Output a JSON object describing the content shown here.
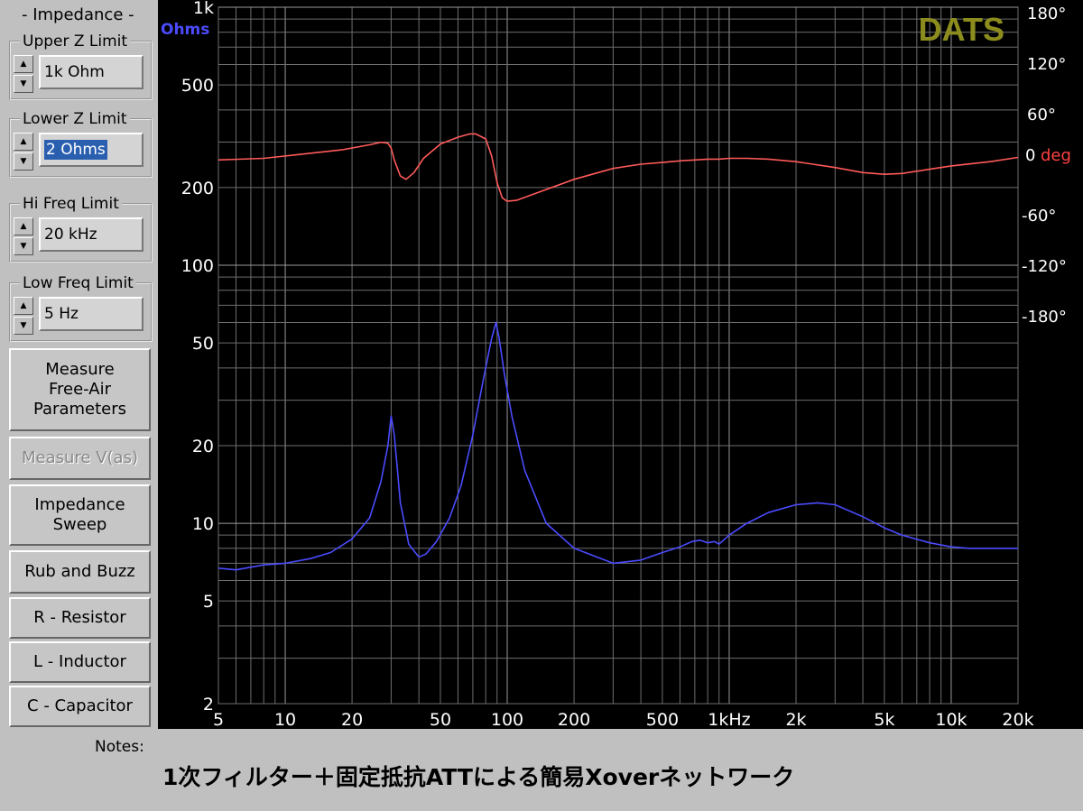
{
  "panel": {
    "title": "- Impedance -",
    "groups": [
      {
        "label": "Upper Z Limit",
        "value": "1k Ohm"
      },
      {
        "label": "Lower Z Limit",
        "value": "2 Ohms"
      },
      {
        "label": "Hi Freq Limit",
        "value": "20 kHz"
      },
      {
        "label": "Low Freq Limit",
        "value": "5 Hz"
      }
    ],
    "buttons": {
      "measure_free_air_1": "Measure",
      "measure_free_air_2": "Free-Air",
      "measure_free_air_3": "Parameters",
      "measure_vas": "Measure V(as)",
      "impedance_sweep_1": "Impedance",
      "impedance_sweep_2": "Sweep",
      "rub_and_buzz": "Rub and Buzz",
      "resistor": "R - Resistor",
      "inductor": "L - Inductor",
      "capacitor": "C - Capacitor"
    },
    "notes_label": "Notes:",
    "notes_text": "1次フィルター＋固定抵抗ATTによる簡易Xoverネットワーク"
  },
  "graph": {
    "logo": "DATS",
    "left_unit": "Ohms",
    "right_unit": "deg",
    "right_zero": "0",
    "colors": {
      "impedance": "#4b4bff",
      "phase": "#ff5a5a",
      "logo": "#8c8c1e",
      "left_unit": "#4b4bff",
      "right_unit": "#ff4040"
    }
  },
  "chart_data": {
    "type": "line",
    "x_scale": "log",
    "y_scale": "log",
    "xlim": [
      5,
      20000
    ],
    "ylim": [
      2,
      1000
    ],
    "y2lim": [
      -180,
      180
    ],
    "x_ticks": [
      5,
      10,
      20,
      50,
      100,
      200,
      500,
      1000,
      2000,
      5000,
      10000,
      20000
    ],
    "x_tick_labels": [
      "5",
      "10",
      "20",
      "50",
      "100",
      "200",
      "500",
      "1kHz",
      "2k",
      "5k",
      "10k",
      "20k"
    ],
    "y_ticks": [
      2,
      5,
      10,
      20,
      50,
      100,
      200,
      500,
      1000
    ],
    "y_tick_labels": [
      "2",
      "5",
      "10",
      "20",
      "50",
      "100",
      "200",
      "500",
      "1k"
    ],
    "y2_ticks": [
      180,
      120,
      60,
      0,
      -60,
      -120,
      -180
    ],
    "y2_tick_labels": [
      "180°",
      "120°",
      "60°",
      "0",
      "-60°",
      "-120°",
      "-180°"
    ],
    "grid": true,
    "series": [
      {
        "axis": "left",
        "x": [
          5,
          6,
          8,
          10,
          13,
          16,
          20,
          24,
          27,
          29,
          30,
          31,
          33,
          36,
          40,
          43,
          48,
          55,
          62,
          70,
          78,
          85,
          89,
          92,
          97,
          105,
          120,
          150,
          200,
          300,
          400,
          500,
          600,
          680,
          740,
          800,
          860,
          900,
          1000,
          1200,
          1500,
          2000,
          2500,
          3000,
          4000,
          5000,
          6000,
          8000,
          10000,
          12000,
          16000,
          20000
        ],
        "values": [
          6.7,
          6.6,
          6.9,
          7.0,
          7.3,
          7.7,
          8.7,
          10.5,
          14.5,
          20,
          26,
          22,
          12,
          8.3,
          7.4,
          7.6,
          8.5,
          10.5,
          14,
          22,
          36,
          52,
          60,
          52,
          38,
          26,
          16,
          10,
          8.0,
          7.0,
          7.2,
          7.7,
          8.1,
          8.5,
          8.6,
          8.4,
          8.5,
          8.3,
          9.0,
          10.0,
          11.0,
          11.8,
          12.0,
          11.8,
          10.6,
          9.6,
          9.0,
          8.4,
          8.1,
          8.0,
          8.0,
          8.0
        ]
      },
      {
        "axis": "right",
        "x": [
          5,
          8,
          12,
          18,
          24,
          27,
          29,
          30,
          31,
          33,
          35,
          38,
          42,
          50,
          60,
          68,
          72,
          80,
          85,
          90,
          95,
          100,
          110,
          130,
          200,
          300,
          400,
          500,
          600,
          700,
          800,
          900,
          1000,
          1200,
          1500,
          2000,
          3000,
          4000,
          5000,
          6000,
          8000,
          10000,
          15000,
          20000
        ],
        "values": [
          5,
          7,
          12,
          17,
          23,
          26,
          25,
          19,
          5,
          -14,
          -18,
          -10,
          7,
          24,
          32,
          36,
          36,
          30,
          10,
          -22,
          -40,
          -44,
          -43,
          -36,
          -18,
          -5,
          0,
          2,
          4,
          5,
          6,
          6,
          7,
          7,
          6,
          3,
          -4,
          -10,
          -12,
          -11,
          -6,
          -2,
          3,
          8
        ]
      }
    ]
  }
}
